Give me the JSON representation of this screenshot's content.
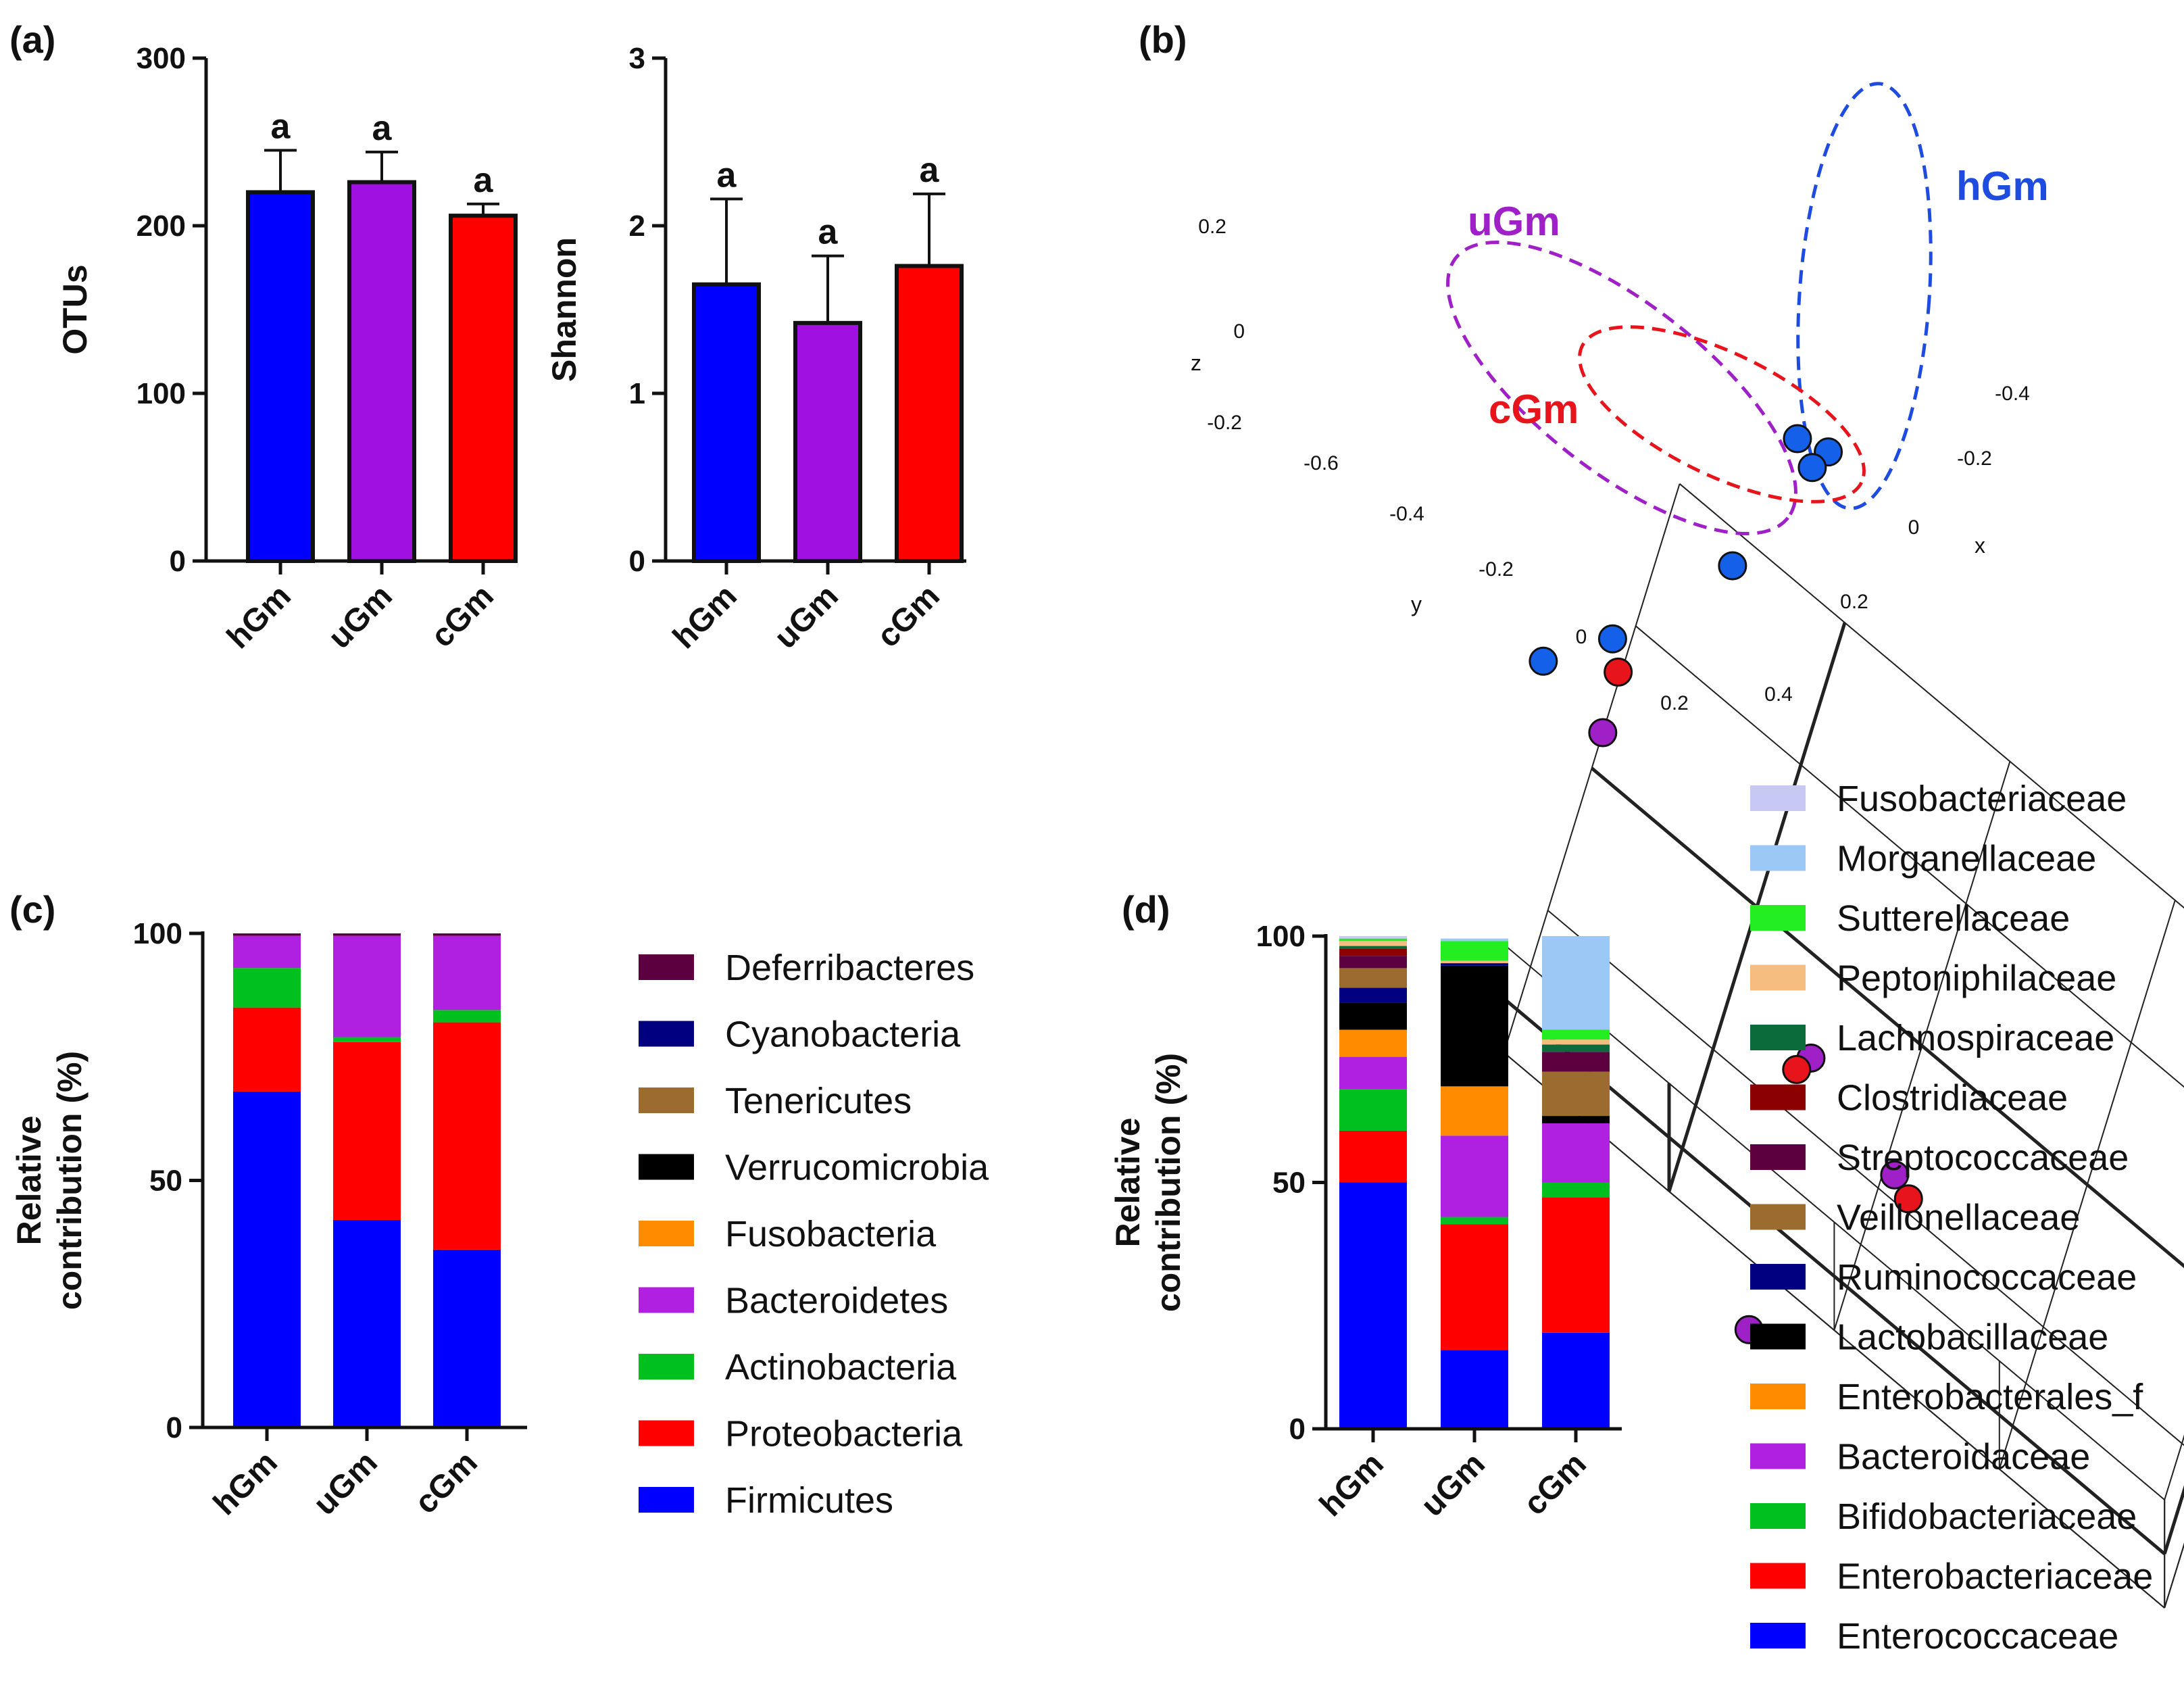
{
  "panels": {
    "a": "(a)",
    "b": "(b)",
    "c": "(c)",
    "d": "(d)"
  },
  "chart_data": [
    {
      "id": "otus",
      "type": "bar",
      "title": "",
      "ylabel": "OTUs",
      "xlabel": "",
      "categories": [
        "hGm",
        "uGm",
        "cGm"
      ],
      "values": [
        220,
        226,
        206
      ],
      "errors": [
        25,
        18,
        7
      ],
      "colors": [
        "#0000FF",
        "#A010E0",
        "#FF0000"
      ],
      "significance": [
        "a",
        "a",
        "a"
      ],
      "ylim": [
        0,
        300
      ],
      "yticks": [
        0,
        100,
        200,
        300
      ]
    },
    {
      "id": "shannon",
      "type": "bar",
      "title": "",
      "ylabel": "Shannon",
      "xlabel": "",
      "categories": [
        "hGm",
        "uGm",
        "cGm"
      ],
      "values": [
        1.65,
        1.42,
        1.76
      ],
      "errors": [
        0.51,
        0.4,
        0.43
      ],
      "colors": [
        "#0000FF",
        "#A010E0",
        "#FF0000"
      ],
      "significance": [
        "a",
        "a",
        "a"
      ],
      "ylim": [
        0,
        3
      ],
      "yticks": [
        0,
        1,
        2,
        3
      ]
    },
    {
      "id": "pcoa",
      "type": "scatter",
      "title": "",
      "axis_labels": {
        "x": "x",
        "y": "y",
        "z": "z"
      },
      "tick_labels": {
        "z": [
          "0.2",
          "0",
          "-0.2"
        ],
        "y": [
          "-0.6",
          "-0.4",
          "-0.2",
          "0",
          "0.2"
        ],
        "x": [
          "-0.4",
          "-0.2",
          "0",
          "0.2",
          "0.4"
        ]
      },
      "groups": [
        {
          "name": "hGm",
          "color": "#1560E8",
          "points": [
            [
              0.4,
              0.02,
              0.38
            ],
            [
              0.41,
              0.06,
              0.3
            ],
            [
              0.44,
              0.05,
              0.14
            ],
            [
              0.34,
              0.12,
              -0.14
            ],
            [
              0.17,
              0.22,
              -0.22
            ],
            [
              0.08,
              0.28,
              -0.22
            ]
          ]
        },
        {
          "name": "uGm",
          "color": "#A020C8",
          "points": [
            [
              -0.6,
              -0.15,
              0.2
            ],
            [
              -0.2,
              -0.22,
              -0.1
            ],
            [
              -0.13,
              -0.1,
              -0.16
            ],
            [
              0.05,
              0.2,
              -0.2
            ]
          ]
        },
        {
          "name": "cGm",
          "color": "#E8141C",
          "points": [
            [
              -0.25,
              -0.25,
              0.02
            ],
            [
              -0.12,
              -0.08,
              -0.28
            ],
            [
              0.12,
              0.2,
              -0.16
            ]
          ]
        }
      ]
    },
    {
      "id": "phylum",
      "type": "bar",
      "stacked": true,
      "ylabel": "Relative contribution (%)",
      "ylabel_lines": [
        "Relative",
        "contribution (%)"
      ],
      "categories": [
        "hGm",
        "uGm",
        "cGm"
      ],
      "ylim": [
        0,
        100
      ],
      "yticks": [
        0,
        50,
        100
      ],
      "series": [
        {
          "name": "Firmicutes",
          "color": "#0000FF",
          "values": [
            68,
            42,
            36
          ]
        },
        {
          "name": "Proteobacteria",
          "color": "#FF0000",
          "values": [
            17,
            36,
            46
          ]
        },
        {
          "name": "Actinobacteria",
          "color": "#00C020",
          "values": [
            8,
            1,
            2.5
          ]
        },
        {
          "name": "Bacteroidetes",
          "color": "#B020E0",
          "values": [
            6.5,
            20.5,
            15
          ]
        },
        {
          "name": "Fusobacteria",
          "color": "#FF8C00",
          "values": [
            0,
            0,
            0
          ]
        },
        {
          "name": "Verrucomicrobia",
          "color": "#000000",
          "values": [
            0,
            0,
            0
          ]
        },
        {
          "name": "Tenericutes",
          "color": "#9C6B2F",
          "values": [
            0,
            0,
            0
          ]
        },
        {
          "name": "Cyanobacteria",
          "color": "#000080",
          "values": [
            0,
            0,
            0
          ]
        },
        {
          "name": "Deferribacteres",
          "color": "#5C0040",
          "values": [
            0.5,
            0.5,
            0.5
          ]
        }
      ],
      "legend": [
        "Deferribacteres",
        "Cyanobacteria",
        "Tenericutes",
        "Verrucomicrobia",
        "Fusobacteria",
        "Bacteroidetes",
        "Actinobacteria",
        "Proteobacteria",
        "Firmicutes"
      ]
    },
    {
      "id": "family",
      "type": "bar",
      "stacked": true,
      "ylabel": "Relative contribution (%)",
      "ylabel_lines": [
        "Relative",
        "contribution (%)"
      ],
      "categories": [
        "hGm",
        "uGm",
        "cGm"
      ],
      "ylim": [
        0,
        100
      ],
      "yticks": [
        0,
        50,
        100
      ],
      "series": [
        {
          "name": "Enterococcaceae",
          "color": "#0000FF",
          "values": [
            50,
            16,
            19.5
          ]
        },
        {
          "name": "Enterobacteriaceae",
          "color": "#FF0000",
          "values": [
            10.5,
            25.5,
            27.5
          ]
        },
        {
          "name": "Bifidobacteriaceae",
          "color": "#00C020",
          "values": [
            8.5,
            1.5,
            3
          ]
        },
        {
          "name": "Bacteroidaceae",
          "color": "#B020E0",
          "values": [
            6.5,
            16.5,
            12
          ]
        },
        {
          "name": "Enterobacterales_f",
          "color": "#FF8C00",
          "values": [
            5.5,
            10,
            0
          ]
        },
        {
          "name": "Lactobacillaceae",
          "color": "#000000",
          "values": [
            5.5,
            24.5,
            1.5
          ]
        },
        {
          "name": "Ruminococcaceae",
          "color": "#000080",
          "values": [
            3,
            0.5,
            0
          ]
        },
        {
          "name": "Veillonellaceae",
          "color": "#9C6B2F",
          "values": [
            4,
            0,
            9
          ]
        },
        {
          "name": "Streptococcaceae",
          "color": "#5C0040",
          "values": [
            2.5,
            0,
            4
          ]
        },
        {
          "name": "Clostridiaceae",
          "color": "#8B0000",
          "values": [
            1.5,
            0,
            0
          ]
        },
        {
          "name": "Lachnospiraceae",
          "color": "#0B6B3A",
          "values": [
            0.5,
            0,
            1.5
          ]
        },
        {
          "name": "Peptoniphilaceae",
          "color": "#F5BE80",
          "values": [
            1,
            0.5,
            1
          ]
        },
        {
          "name": "Sutterellaceae",
          "color": "#22EE22",
          "values": [
            0.5,
            4,
            2
          ]
        },
        {
          "name": "Morganellaceae",
          "color": "#9CC8F5",
          "values": [
            0,
            0.5,
            19
          ]
        },
        {
          "name": "Fusobacteriaceae",
          "color": "#C8C8F5",
          "values": [
            0.5,
            0,
            0
          ]
        }
      ],
      "legend": [
        "Fusobacteriaceae",
        "Morganellaceae",
        "Sutterellaceae",
        "Peptoniphilaceae",
        "Lachnospiraceae",
        "Clostridiaceae",
        "Streptococcaceae",
        "Veillonellaceae",
        "Ruminococcaceae",
        "Lactobacillaceae",
        "Enterobacterales_f",
        "Bacteroidaceae",
        "Bifidobacteriaceae",
        "Enterobacteriaceae",
        "Enterococcaceae"
      ]
    }
  ]
}
